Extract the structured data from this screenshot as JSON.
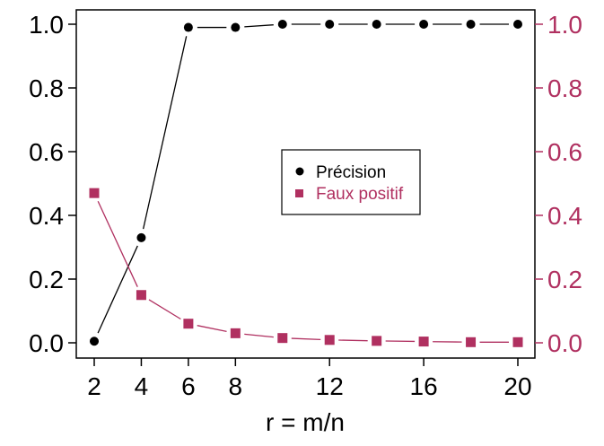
{
  "chart_data": {
    "type": "line",
    "x": [
      2,
      4,
      6,
      8,
      10,
      12,
      14,
      16,
      18,
      20
    ],
    "xlabel": "r = m/n",
    "xticks": [
      2,
      4,
      6,
      8,
      12,
      16,
      20
    ],
    "xlim": [
      2,
      20
    ],
    "ylim": [
      0,
      1
    ],
    "yticks_left": [
      "0.0",
      "0.2",
      "0.4",
      "0.6",
      "0.8",
      "1.0"
    ],
    "yticks_right": [
      "0.0",
      "0.2",
      "0.4",
      "0.6",
      "0.8",
      "1.0"
    ],
    "grid": false,
    "legend_position": "center-right",
    "series": [
      {
        "name": "Précision",
        "color": "#000000",
        "marker": "circle",
        "axis": "left",
        "values": [
          0.005,
          0.33,
          0.99,
          0.99,
          1.0,
          1.0,
          1.0,
          1.0,
          1.0,
          1.0
        ]
      },
      {
        "name": "Faux positif",
        "color": "#b03060",
        "marker": "square",
        "axis": "right",
        "values": [
          0.47,
          0.15,
          0.06,
          0.03,
          0.015,
          0.009,
          0.006,
          0.004,
          0.002,
          0.002
        ]
      }
    ]
  }
}
